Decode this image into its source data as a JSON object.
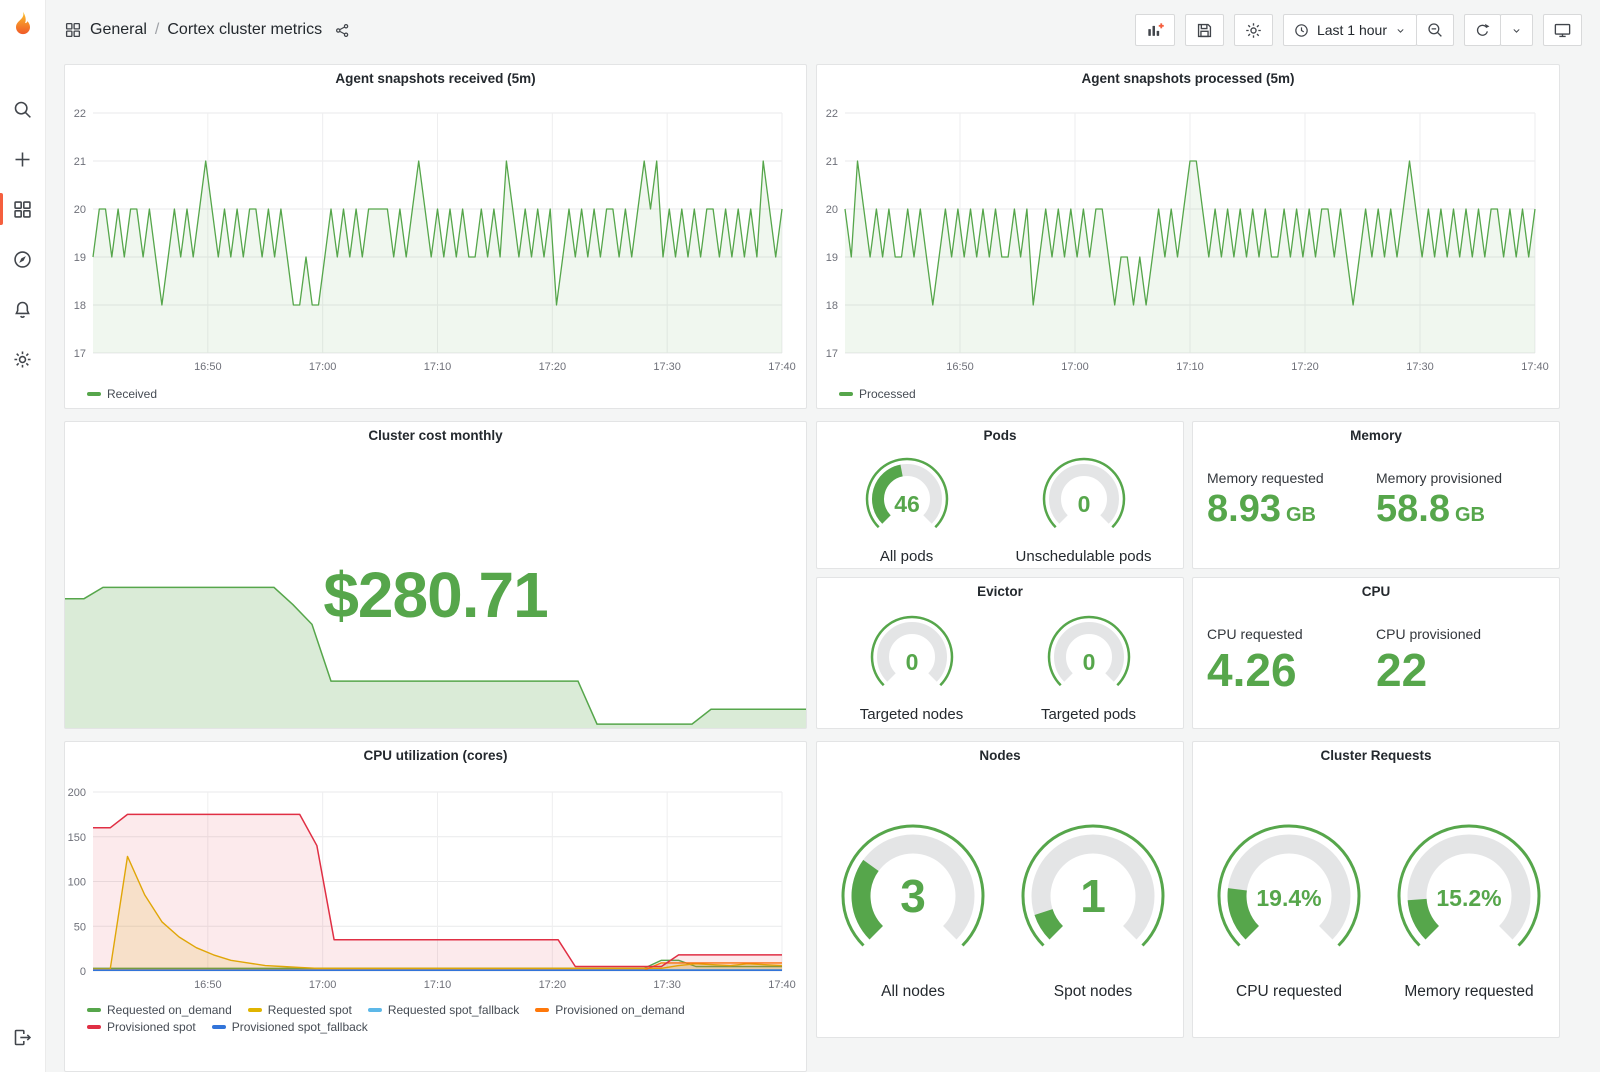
{
  "nav": {
    "breadcrumb_section": "General",
    "breadcrumb_separator": "/",
    "breadcrumb_title": "Cortex cluster metrics",
    "time_picker_label": "Last 1 hour"
  },
  "colors": {
    "green": "#56A64B",
    "accent_orange": "#f55f3e"
  },
  "panels": {
    "received": {
      "title": "Agent snapshots received (5m)"
    },
    "processed": {
      "title": "Agent snapshots processed (5m)"
    },
    "cost": {
      "title": "Cluster cost monthly",
      "value": "$280.71"
    },
    "pods": {
      "title": "Pods",
      "gauges": [
        {
          "value": "46",
          "label": "All pods",
          "percent": 46
        },
        {
          "value": "0",
          "label": "Unschedulable pods",
          "percent": 0
        }
      ]
    },
    "memory": {
      "title": "Memory",
      "stats": [
        {
          "label": "Memory requested",
          "value": "8.93",
          "unit": "GB"
        },
        {
          "label": "Memory provisioned",
          "value": "58.8",
          "unit": "GB"
        }
      ]
    },
    "evictor": {
      "title": "Evictor",
      "gauges": [
        {
          "value": "0",
          "label": "Targeted nodes",
          "percent": 0
        },
        {
          "value": "0",
          "label": "Targeted pods",
          "percent": 0
        }
      ]
    },
    "cpu": {
      "title": "CPU",
      "stats": [
        {
          "label": "CPU requested",
          "value": "4.26",
          "unit": ""
        },
        {
          "label": "CPU provisioned",
          "value": "22",
          "unit": ""
        }
      ]
    },
    "cpu_util": {
      "title": "CPU utilization (cores)"
    },
    "nodes": {
      "title": "Nodes",
      "gauges": [
        {
          "value": "3",
          "label": "All nodes",
          "percent": 30
        },
        {
          "value": "1",
          "label": "Spot nodes",
          "percent": 10
        }
      ]
    },
    "requests": {
      "title": "Cluster Requests",
      "gauges": [
        {
          "value": "19.4%",
          "label": "CPU requested",
          "percent": 19.4
        },
        {
          "value": "15.2%",
          "label": "Memory requested",
          "percent": 15.2
        }
      ]
    }
  },
  "chart_data": [
    {
      "id": "received",
      "type": "line",
      "title": "Agent snapshots received (5m)",
      "ylim": [
        17,
        22
      ],
      "yticks": [
        17,
        18,
        19,
        20,
        21,
        22
      ],
      "xticks": [
        "16:50",
        "17:00",
        "17:10",
        "17:20",
        "17:30",
        "17:40"
      ],
      "grid": true,
      "legend_position": "bottom",
      "pad": [
        20,
        24,
        30,
        28
      ],
      "series": [
        {
          "name": "Received",
          "color": "#56A64B",
          "fill": 0.09,
          "width": 1.3,
          "values": [
            19,
            20,
            20,
            19,
            20,
            19,
            20,
            20,
            19,
            20,
            19,
            18,
            19,
            20,
            19,
            20,
            19,
            20,
            21,
            20,
            19,
            20,
            19,
            20,
            19,
            20,
            20,
            19,
            20,
            19,
            20,
            19,
            18,
            18,
            19,
            18,
            18,
            19,
            20,
            19,
            20,
            19,
            20,
            19,
            20,
            20,
            20,
            20,
            19,
            20,
            19,
            20,
            21,
            20,
            19,
            20,
            19,
            20,
            19,
            20,
            19,
            19,
            20,
            19,
            20,
            19,
            21,
            20,
            19,
            20,
            19,
            20,
            19,
            20,
            18,
            19,
            20,
            19,
            20,
            19,
            20,
            19,
            20,
            20,
            19,
            20,
            19,
            20,
            21,
            20,
            21,
            19,
            20,
            19,
            20,
            19,
            20,
            19,
            20,
            20,
            19,
            20,
            19,
            20,
            19,
            20,
            19,
            21,
            20,
            19,
            20
          ]
        }
      ]
    },
    {
      "id": "processed",
      "type": "line",
      "title": "Agent snapshots processed (5m)",
      "ylim": [
        17,
        22
      ],
      "yticks": [
        17,
        18,
        19,
        20,
        21,
        22
      ],
      "xticks": [
        "16:50",
        "17:00",
        "17:10",
        "17:20",
        "17:30",
        "17:40"
      ],
      "grid": true,
      "legend_position": "bottom",
      "pad": [
        20,
        24,
        30,
        28
      ],
      "series": [
        {
          "name": "Processed",
          "color": "#56A64B",
          "fill": 0.09,
          "width": 1.3,
          "values": [
            20,
            19,
            21,
            20,
            19,
            20,
            19,
            20,
            19,
            19,
            20,
            19,
            20,
            19,
            18,
            19,
            20,
            19,
            20,
            19,
            20,
            19,
            20,
            19,
            20,
            19,
            19,
            20,
            19,
            20,
            18,
            19,
            20,
            19,
            20,
            19,
            20,
            19,
            20,
            19,
            20,
            20,
            19,
            18,
            19,
            19,
            18,
            19,
            18,
            19,
            20,
            19,
            20,
            19,
            20,
            21,
            21,
            20,
            19,
            20,
            19,
            20,
            19,
            20,
            19,
            20,
            19,
            20,
            19,
            19,
            20,
            19,
            20,
            19,
            20,
            19,
            20,
            20,
            19,
            20,
            19,
            18,
            19,
            20,
            19,
            20,
            19,
            20,
            19,
            20,
            21,
            20,
            19,
            20,
            19,
            20,
            19,
            20,
            19,
            20,
            19,
            20,
            19,
            20,
            20,
            19,
            20,
            19,
            20,
            19,
            20
          ]
        }
      ]
    },
    {
      "id": "cpu_util",
      "type": "line",
      "title": "CPU utilization (cores)",
      "ylim": [
        0,
        200
      ],
      "yticks": [
        0,
        50,
        100,
        150,
        200
      ],
      "xticks": [
        "16:50",
        "17:00",
        "17:10",
        "17:20",
        "17:30",
        "17:40"
      ],
      "grid": true,
      "legend_position": "bottom",
      "pad": [
        22,
        24,
        28,
        28
      ],
      "series": [
        {
          "name": "Requested on_demand",
          "color": "#56A64B",
          "fill": 0.12,
          "width": 1.4,
          "values": [
            3,
            3,
            3,
            3,
            3,
            3,
            3,
            3,
            3,
            3,
            3,
            3,
            3,
            3,
            3,
            3,
            3,
            3,
            3,
            3,
            3,
            3,
            3,
            3,
            3,
            3,
            3,
            3,
            3,
            3,
            3,
            3,
            3,
            12,
            12,
            5,
            5,
            5,
            5,
            5,
            5
          ]
        },
        {
          "name": "Requested spot",
          "color": "#E0B400",
          "fill": 0.15,
          "width": 1.4,
          "values": [
            2,
            2,
            128,
            85,
            55,
            38,
            26,
            18,
            12,
            9,
            6,
            5,
            4,
            3,
            3,
            3,
            3,
            3,
            3,
            3,
            3,
            3,
            3,
            3,
            3,
            3,
            3,
            3,
            3,
            3,
            3,
            3,
            3,
            3,
            6,
            8,
            7,
            6,
            8,
            7,
            6
          ]
        },
        {
          "name": "Requested spot_fallback",
          "color": "#5DB8E8",
          "fill": 0,
          "width": 1.4,
          "values": [
            1.5,
            1.5,
            1.5,
            1.5,
            1.5,
            1.5,
            1.5,
            1.5,
            1.5,
            1.5,
            1.5,
            1.5,
            1.5,
            1.5,
            1.5,
            1.5,
            1.5,
            1.5,
            1.5,
            1.5,
            1.5,
            1.5,
            1.5,
            1.5,
            1.5,
            1.5,
            1.5,
            1.5,
            1.5,
            1.5,
            1.5,
            1.5,
            1.5,
            1.5,
            1.5,
            1.5,
            1.5,
            1.5,
            1.5,
            1.5,
            1.5
          ]
        },
        {
          "name": "Provisioned on_demand",
          "color": "#FF780A",
          "fill": 0.12,
          "width": 1.4,
          "values": [
            1,
            1,
            1,
            1,
            1,
            1,
            1,
            1,
            1,
            1,
            1,
            1,
            1,
            1,
            1,
            1,
            1,
            1,
            1,
            1,
            1,
            1,
            1,
            1,
            1,
            1,
            1,
            1,
            1,
            1,
            1,
            1,
            1,
            9,
            9,
            9,
            9,
            9,
            9,
            9,
            9
          ]
        },
        {
          "name": "Provisioned spot",
          "color": "#E02F44",
          "fill": 0.1,
          "width": 1.5,
          "values": [
            160,
            160,
            175,
            175,
            175,
            175,
            175,
            175,
            175,
            175,
            175,
            175,
            175,
            140,
            35,
            35,
            35,
            35,
            35,
            35,
            35,
            35,
            35,
            35,
            35,
            35,
            35,
            35,
            5,
            5,
            5,
            5,
            5,
            5,
            18,
            18,
            18,
            18,
            18,
            18,
            18
          ]
        },
        {
          "name": "Provisioned spot_fallback",
          "color": "#3274D9",
          "fill": 0,
          "width": 1.4,
          "values": [
            0.8,
            0.8,
            0.8,
            0.8,
            0.8,
            0.8,
            0.8,
            0.8,
            0.8,
            0.8,
            0.8,
            0.8,
            0.8,
            0.8,
            0.8,
            0.8,
            0.8,
            0.8,
            0.8,
            0.8,
            0.8,
            0.8,
            0.8,
            0.8,
            0.8,
            0.8,
            0.8,
            0.8,
            0.8,
            0.8,
            0.8,
            0.8,
            0.8,
            0.8,
            0.8,
            0.8,
            0.8,
            0.8,
            0.8,
            0.8,
            0.8
          ]
        }
      ]
    },
    {
      "id": "cost_spark",
      "type": "area",
      "title": "Cluster cost monthly (sparkline)",
      "ylim": [
        0,
        300
      ],
      "color": "#56A64B",
      "fill": 0.22,
      "values": [
        262,
        262,
        285,
        285,
        285,
        285,
        285,
        285,
        285,
        285,
        285,
        285,
        250,
        210,
        95,
        95,
        95,
        95,
        95,
        95,
        95,
        95,
        95,
        95,
        95,
        95,
        95,
        95,
        8,
        8,
        8,
        8,
        8,
        8,
        38,
        38,
        38,
        38,
        38,
        38
      ]
    }
  ]
}
